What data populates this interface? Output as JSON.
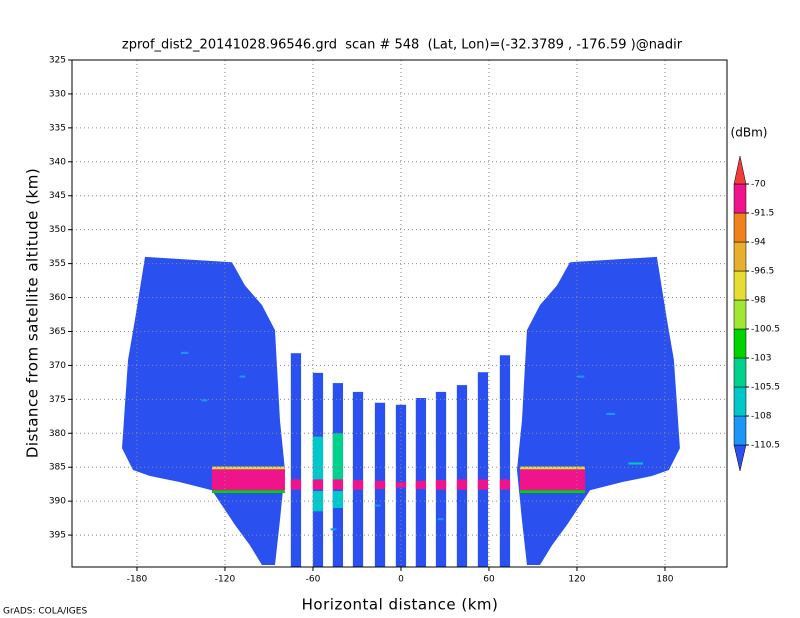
{
  "chart_data": {
    "type": "shaded",
    "title": "zprof_dist2_20141028.96546.grd  scan # 548  (Lat, Lon)=(-32.3789 , -176.59 )@nadir",
    "x_label": "Horizontal distance (km)",
    "y_label": "Distance from satellite altitude (km)",
    "colorbar_unit": "(dBm)",
    "credit": "GrADS: COLA/IGES",
    "xlim": [
      -224.3,
      222.3
    ],
    "ylim": [
      325,
      399.7
    ],
    "y_inverted": true,
    "xticks": [
      -180,
      -120,
      -60,
      0,
      60,
      120,
      180
    ],
    "yticks": [
      325,
      330,
      335,
      340,
      345,
      350,
      355,
      360,
      365,
      370,
      375,
      380,
      385,
      390,
      395
    ],
    "grid": true,
    "levels": [
      -110.5,
      -108,
      -105.5,
      -103,
      -100.5,
      -98,
      -96.5,
      -94,
      -91.5,
      -70
    ],
    "colors": [
      "#2b50f0",
      "#1e96f5",
      "#00c8c8",
      "#00d28c",
      "#00d200",
      "#a0e632",
      "#e6dc32",
      "#e6af2d",
      "#f0821e",
      "#f0148c",
      "#f03c3c"
    ],
    "polygons": [
      {
        "value": -112,
        "points": [
          [
            -174.5,
            354.0
          ],
          [
            -115.2,
            354.8
          ],
          [
            -106.4,
            358.2
          ],
          [
            -94.8,
            361.1
          ],
          [
            -85.9,
            364.8
          ],
          [
            -82.5,
            378.1
          ],
          [
            -79.1,
            385.4
          ],
          [
            -82.5,
            392.8
          ],
          [
            -85.9,
            399.4
          ],
          [
            -94.8,
            399.4
          ],
          [
            -103.0,
            396.5
          ],
          [
            -113.2,
            393.5
          ],
          [
            -128.9,
            388.4
          ],
          [
            -150.7,
            387.2
          ],
          [
            -171.1,
            386.3
          ],
          [
            -182.7,
            385.4
          ],
          [
            -190.2,
            382.2
          ],
          [
            -186.1,
            369.2
          ],
          [
            -181.4,
            363.3
          ]
        ]
      },
      {
        "value": -112,
        "points": [
          [
            174.5,
            354.0
          ],
          [
            115.2,
            354.8
          ],
          [
            106.4,
            358.2
          ],
          [
            94.8,
            361.1
          ],
          [
            85.9,
            364.8
          ],
          [
            82.5,
            378.1
          ],
          [
            79.1,
            385.4
          ],
          [
            82.5,
            392.8
          ],
          [
            85.9,
            399.4
          ],
          [
            94.8,
            399.4
          ],
          [
            103.0,
            396.5
          ],
          [
            113.2,
            393.5
          ],
          [
            128.9,
            388.4
          ],
          [
            150.7,
            387.2
          ],
          [
            171.1,
            386.3
          ],
          [
            182.7,
            385.4
          ],
          [
            190.2,
            382.2
          ],
          [
            186.1,
            369.2
          ],
          [
            181.4,
            363.3
          ]
        ]
      }
    ],
    "rects": [
      {
        "value": -112,
        "x": [
          -75.1,
          -68.1
        ],
        "y": [
          368.2,
          399.7
        ]
      },
      {
        "value": -112,
        "x": [
          -60.1,
          -53.1
        ],
        "y": [
          371.1,
          399.7
        ]
      },
      {
        "value": -112,
        "x": [
          -46.5,
          -39.5
        ],
        "y": [
          372.6,
          399.7
        ]
      },
      {
        "value": -112,
        "x": [
          -32.8,
          -25.8
        ],
        "y": [
          373.9,
          399.7
        ]
      },
      {
        "value": -112,
        "x": [
          -17.8,
          -10.8
        ],
        "y": [
          375.5,
          399.7
        ]
      },
      {
        "value": -112,
        "x": [
          -3.5,
          3.5
        ],
        "y": [
          375.8,
          399.7
        ]
      },
      {
        "value": -112,
        "x": [
          10.1,
          17.1
        ],
        "y": [
          374.8,
          399.7
        ]
      },
      {
        "value": -112,
        "x": [
          23.8,
          30.8
        ],
        "y": [
          373.9,
          399.7
        ]
      },
      {
        "value": -112,
        "x": [
          38.1,
          45.1
        ],
        "y": [
          372.9,
          399.7
        ]
      },
      {
        "value": -112,
        "x": [
          52.4,
          59.4
        ],
        "y": [
          371.0,
          399.7
        ]
      },
      {
        "value": -112,
        "x": [
          67.4,
          74.4
        ],
        "y": [
          368.5,
          399.7
        ]
      },
      {
        "value": -107,
        "x": [
          -60.1,
          -53.1
        ],
        "y": [
          380.5,
          386.8
        ]
      },
      {
        "value": -104,
        "x": [
          -46.5,
          -39.5
        ],
        "y": [
          380.0,
          386.8
        ]
      },
      {
        "value": -107,
        "x": [
          -60.1,
          -53.1
        ],
        "y": [
          388.5,
          391.5
        ]
      },
      {
        "value": -107,
        "x": [
          -46.5,
          -39.5
        ],
        "y": [
          388.5,
          391.0
        ]
      },
      {
        "value": -85,
        "x": [
          -128.9,
          -79.1
        ],
        "y": [
          385.3,
          388.4
        ]
      },
      {
        "value": -97,
        "x": [
          -128.9,
          -79.1
        ],
        "y": [
          384.9,
          385.3
        ]
      },
      {
        "value": -102,
        "x": [
          -128.9,
          -79.1
        ],
        "y": [
          388.4,
          388.8
        ]
      },
      {
        "value": -85,
        "x": [
          81.1,
          125.5
        ],
        "y": [
          385.3,
          388.4
        ]
      },
      {
        "value": -97,
        "x": [
          81.1,
          125.5
        ],
        "y": [
          384.9,
          385.3
        ]
      },
      {
        "value": -102,
        "x": [
          81.1,
          125.5
        ],
        "y": [
          388.4,
          388.8
        ]
      },
      {
        "value": -85,
        "x": [
          -75.1,
          -68.1
        ],
        "y": [
          386.8,
          388.3
        ]
      },
      {
        "value": -85,
        "x": [
          -60.1,
          -53.1
        ],
        "y": [
          386.8,
          388.3
        ]
      },
      {
        "value": -85,
        "x": [
          -46.5,
          -39.5
        ],
        "y": [
          386.8,
          388.3
        ]
      },
      {
        "value": -85,
        "x": [
          -32.8,
          -25.8
        ],
        "y": [
          386.9,
          388.3
        ]
      },
      {
        "value": -85,
        "x": [
          -17.8,
          -10.8
        ],
        "y": [
          387.0,
          388.2
        ]
      },
      {
        "value": -85,
        "x": [
          -3.5,
          3.5
        ],
        "y": [
          387.2,
          388.0
        ]
      },
      {
        "value": -85,
        "x": [
          10.1,
          17.1
        ],
        "y": [
          387.0,
          388.2
        ]
      },
      {
        "value": -85,
        "x": [
          23.8,
          30.8
        ],
        "y": [
          386.9,
          388.3
        ]
      },
      {
        "value": -85,
        "x": [
          38.1,
          45.1
        ],
        "y": [
          386.8,
          388.3
        ]
      },
      {
        "value": -85,
        "x": [
          52.4,
          59.4
        ],
        "y": [
          386.8,
          388.3
        ]
      },
      {
        "value": -85,
        "x": [
          67.4,
          74.4
        ],
        "y": [
          386.8,
          388.3
        ]
      },
      {
        "value": -109,
        "x": [
          -150,
          -145
        ],
        "y": [
          368.0,
          368.3
        ]
      },
      {
        "value": -109,
        "x": [
          -136,
          -132
        ],
        "y": [
          375.0,
          375.3
        ]
      },
      {
        "value": -109,
        "x": [
          -110,
          -106
        ],
        "y": [
          371.5,
          371.8
        ]
      },
      {
        "value": -109,
        "x": [
          -48,
          -44
        ],
        "y": [
          394.0,
          394.3
        ]
      },
      {
        "value": -109,
        "x": [
          -18,
          -14
        ],
        "y": [
          390.5,
          390.8
        ]
      },
      {
        "value": -109,
        "x": [
          25,
          29
        ],
        "y": [
          392.5,
          392.8
        ]
      },
      {
        "value": -109,
        "x": [
          120,
          125
        ],
        "y": [
          371.5,
          371.8
        ]
      },
      {
        "value": -107,
        "x": [
          155,
          165
        ],
        "y": [
          384.3,
          384.6
        ]
      },
      {
        "value": -109,
        "x": [
          140,
          146
        ],
        "y": [
          377.0,
          377.3
        ]
      }
    ]
  }
}
